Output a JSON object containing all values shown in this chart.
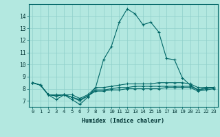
{
  "xlabel": "Humidex (Indice chaleur)",
  "bg_color": "#b3e8e0",
  "line_color": "#006666",
  "grid_color": "#8fcfca",
  "xlim": [
    -0.5,
    23.5
  ],
  "ylim": [
    6.5,
    15.0
  ],
  "xticks": [
    0,
    1,
    2,
    3,
    4,
    5,
    6,
    7,
    8,
    9,
    10,
    11,
    12,
    13,
    14,
    15,
    16,
    17,
    18,
    19,
    20,
    21,
    22,
    23
  ],
  "yticks": [
    7,
    8,
    9,
    10,
    11,
    12,
    13,
    14
  ],
  "series": [
    [
      8.5,
      8.3,
      7.5,
      7.1,
      7.5,
      7.1,
      6.7,
      7.3,
      8.1,
      10.4,
      11.5,
      13.5,
      14.6,
      14.2,
      13.3,
      13.5,
      12.7,
      10.5,
      10.4,
      8.9,
      8.3,
      7.9,
      8.1,
      8.1
    ],
    [
      8.5,
      8.3,
      7.5,
      7.5,
      7.5,
      7.5,
      7.2,
      7.5,
      8.1,
      8.1,
      8.2,
      8.3,
      8.4,
      8.4,
      8.4,
      8.4,
      8.5,
      8.5,
      8.5,
      8.5,
      8.4,
      8.1,
      8.1,
      8.1
    ],
    [
      8.5,
      8.3,
      7.5,
      7.4,
      7.5,
      7.3,
      7.1,
      7.4,
      7.9,
      7.9,
      8.0,
      8.1,
      8.1,
      8.2,
      8.2,
      8.2,
      8.2,
      8.2,
      8.2,
      8.2,
      8.2,
      7.9,
      8.0,
      8.1
    ],
    [
      8.5,
      8.3,
      7.5,
      7.4,
      7.5,
      7.3,
      7.0,
      7.4,
      7.8,
      7.8,
      7.9,
      7.9,
      8.0,
      8.0,
      8.0,
      8.0,
      8.0,
      8.1,
      8.1,
      8.1,
      8.1,
      7.8,
      7.9,
      8.0
    ]
  ],
  "xlabel_fontsize": 6.0,
  "tick_fontsize": 5.2,
  "marker_size": 3.0,
  "linewidth": 0.8
}
